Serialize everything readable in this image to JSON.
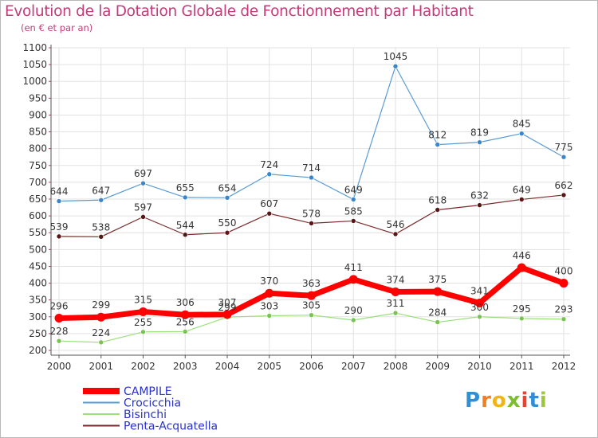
{
  "header": {
    "title": "Evolution de la Dotation Globale de Fonctionnement par Habitant",
    "subtitle": "(en € et par an)"
  },
  "logo": {
    "letters": [
      "P",
      "r",
      "o",
      "x",
      "i",
      "t",
      "i"
    ]
  },
  "colors": {
    "title": "#c43a7a",
    "axis": "#555555",
    "grid": "#e2e2e2",
    "frame": "#b8b8b8"
  },
  "chart_data": {
    "type": "line",
    "x": [
      "2000",
      "2001",
      "2002",
      "2003",
      "2004",
      "2005",
      "2006",
      "2007",
      "2008",
      "2009",
      "2010",
      "2011",
      "2012"
    ],
    "ylim": [
      200,
      1100
    ],
    "yticks": [
      200,
      250,
      300,
      350,
      400,
      450,
      500,
      550,
      600,
      650,
      700,
      750,
      800,
      850,
      900,
      950,
      1000,
      1050,
      1100
    ],
    "grid": true,
    "legend_position": "bottom-left",
    "series": [
      {
        "name": "Penta-Acquatella",
        "color": "#7a2a2a",
        "marker": "#5a1616",
        "width": 1.2,
        "label_color": "#333333",
        "values": [
          539,
          538,
          597,
          544,
          550,
          607,
          578,
          585,
          546,
          618,
          632,
          649,
          662
        ]
      },
      {
        "name": "Bisinchi",
        "color": "#9be07a",
        "marker": "#79c450",
        "width": 1.2,
        "label_color": "#333333",
        "values": [
          228,
          224,
          255,
          256,
          299,
          303,
          305,
          290,
          311,
          284,
          300,
          295,
          293
        ]
      },
      {
        "name": "Crocicchia",
        "color": "#5a9bd5",
        "marker": "#3a86c8",
        "width": 1.2,
        "label_color": "#333333",
        "values": [
          644,
          647,
          697,
          655,
          654,
          724,
          714,
          649,
          1045,
          812,
          819,
          845,
          775
        ]
      },
      {
        "name": "CAMPILE",
        "color": "#ff0000",
        "marker": "#ff0000",
        "width": 7,
        "label_color": "#333333",
        "values": [
          296,
          299,
          315,
          306,
          307,
          370,
          363,
          411,
          374,
          375,
          341,
          446,
          400
        ]
      }
    ],
    "legend_order": [
      "CAMPILE",
      "Crocicchia",
      "Bisinchi",
      "Penta-Acquatella"
    ]
  }
}
